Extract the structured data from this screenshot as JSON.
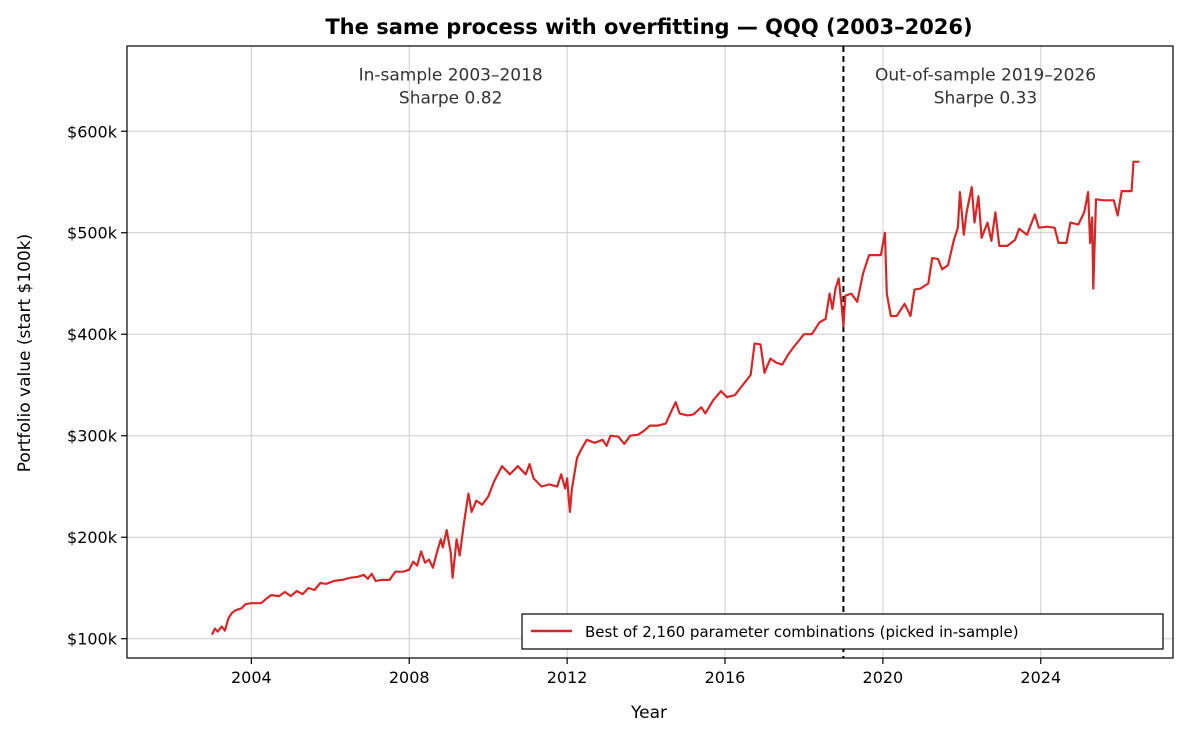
{
  "chart_data": {
    "type": "line",
    "title": "The same process with overfitting — QQQ (2003–2026)",
    "xlabel": "Year",
    "ylabel": "Portfolio value (start $100k)",
    "xlim": [
      2000.85,
      2027.35
    ],
    "ylim": [
      81000,
      684000
    ],
    "x_ticks": [
      2004,
      2008,
      2012,
      2016,
      2020,
      2024
    ],
    "x_tick_labels": [
      "2004",
      "2008",
      "2012",
      "2016",
      "2020",
      "2024"
    ],
    "y_ticks": [
      100000,
      200000,
      300000,
      400000,
      500000,
      600000
    ],
    "y_tick_labels": [
      "$100k",
      "$200k",
      "$300k",
      "$400k",
      "$500k",
      "$600k"
    ],
    "grid": true,
    "legend_position": "lower right",
    "split_line": {
      "x": 2019.0,
      "style": "dashed",
      "color": "#000000"
    },
    "annotations": [
      {
        "line1": "In-sample 2003–2018",
        "line2": "Sharpe 0.82",
        "x": 2009.05,
        "y": 650000
      },
      {
        "line1": "Out-of-sample 2019–2026",
        "line2": "Sharpe 0.33",
        "x": 2022.6,
        "y": 650000
      }
    ],
    "series": [
      {
        "name": "Best of 2,160 parameter combinations (picked in-sample)",
        "color": "#d62728",
        "points": [
          [
            2003.0,
            104000
          ],
          [
            2003.08,
            110000
          ],
          [
            2003.15,
            107000
          ],
          [
            2003.25,
            112000
          ],
          [
            2003.33,
            108000
          ],
          [
            2003.42,
            120000
          ],
          [
            2003.5,
            125000
          ],
          [
            2003.6,
            128000
          ],
          [
            2003.75,
            130000
          ],
          [
            2003.85,
            134000
          ],
          [
            2004.0,
            135000
          ],
          [
            2004.25,
            135000
          ],
          [
            2004.4,
            140000
          ],
          [
            2004.5,
            143000
          ],
          [
            2004.7,
            142000
          ],
          [
            2004.85,
            146000
          ],
          [
            2005.0,
            142000
          ],
          [
            2005.15,
            147000
          ],
          [
            2005.3,
            144000
          ],
          [
            2005.45,
            150000
          ],
          [
            2005.6,
            148000
          ],
          [
            2005.75,
            155000
          ],
          [
            2005.9,
            154000
          ],
          [
            2006.1,
            157000
          ],
          [
            2006.3,
            158000
          ],
          [
            2006.5,
            160000
          ],
          [
            2006.7,
            161000
          ],
          [
            2006.85,
            163000
          ],
          [
            2006.95,
            159000
          ],
          [
            2007.05,
            164000
          ],
          [
            2007.15,
            157000
          ],
          [
            2007.3,
            158000
          ],
          [
            2007.5,
            158000
          ],
          [
            2007.65,
            166000
          ],
          [
            2007.85,
            166000
          ],
          [
            2008.0,
            168000
          ],
          [
            2008.1,
            176000
          ],
          [
            2008.2,
            172000
          ],
          [
            2008.3,
            186000
          ],
          [
            2008.4,
            175000
          ],
          [
            2008.5,
            178000
          ],
          [
            2008.6,
            170000
          ],
          [
            2008.7,
            185000
          ],
          [
            2008.8,
            198000
          ],
          [
            2008.85,
            190000
          ],
          [
            2008.95,
            207000
          ],
          [
            2009.05,
            185000
          ],
          [
            2009.1,
            160000
          ],
          [
            2009.2,
            198000
          ],
          [
            2009.28,
            182000
          ],
          [
            2009.38,
            212000
          ],
          [
            2009.5,
            243000
          ],
          [
            2009.58,
            225000
          ],
          [
            2009.7,
            236000
          ],
          [
            2009.85,
            232000
          ],
          [
            2010.0,
            240000
          ],
          [
            2010.15,
            255000
          ],
          [
            2010.35,
            270000
          ],
          [
            2010.55,
            262000
          ],
          [
            2010.75,
            270000
          ],
          [
            2010.95,
            262000
          ],
          [
            2011.05,
            272000
          ],
          [
            2011.15,
            258000
          ],
          [
            2011.35,
            250000
          ],
          [
            2011.55,
            252000
          ],
          [
            2011.75,
            250000
          ],
          [
            2011.85,
            262000
          ],
          [
            2011.95,
            248000
          ],
          [
            2012.0,
            258000
          ],
          [
            2012.07,
            225000
          ],
          [
            2012.12,
            247000
          ],
          [
            2012.25,
            278000
          ],
          [
            2012.35,
            286000
          ],
          [
            2012.5,
            296000
          ],
          [
            2012.7,
            293000
          ],
          [
            2012.9,
            296000
          ],
          [
            2013.0,
            290000
          ],
          [
            2013.1,
            300000
          ],
          [
            2013.3,
            299000
          ],
          [
            2013.45,
            292000
          ],
          [
            2013.6,
            300000
          ],
          [
            2013.8,
            301000
          ],
          [
            2013.95,
            305000
          ],
          [
            2014.1,
            310000
          ],
          [
            2014.3,
            310000
          ],
          [
            2014.5,
            312000
          ],
          [
            2014.65,
            325000
          ],
          [
            2014.75,
            333000
          ],
          [
            2014.85,
            322000
          ],
          [
            2015.05,
            320000
          ],
          [
            2015.2,
            321000
          ],
          [
            2015.4,
            328000
          ],
          [
            2015.5,
            322000
          ],
          [
            2015.7,
            335000
          ],
          [
            2015.9,
            344000
          ],
          [
            2016.05,
            338000
          ],
          [
            2016.25,
            340000
          ],
          [
            2016.45,
            350000
          ],
          [
            2016.65,
            360000
          ],
          [
            2016.75,
            391000
          ],
          [
            2016.9,
            390000
          ],
          [
            2017.0,
            362000
          ],
          [
            2017.15,
            376000
          ],
          [
            2017.3,
            372000
          ],
          [
            2017.45,
            370000
          ],
          [
            2017.6,
            380000
          ],
          [
            2017.75,
            388000
          ],
          [
            2017.9,
            395000
          ],
          [
            2018.0,
            400000
          ],
          [
            2018.2,
            400000
          ],
          [
            2018.4,
            412000
          ],
          [
            2018.55,
            415000
          ],
          [
            2018.65,
            440000
          ],
          [
            2018.72,
            425000
          ],
          [
            2018.8,
            445000
          ],
          [
            2018.88,
            455000
          ],
          [
            2018.95,
            430000
          ],
          [
            2019.0,
            408000
          ],
          [
            2019.05,
            438000
          ],
          [
            2019.2,
            440000
          ],
          [
            2019.35,
            432000
          ],
          [
            2019.5,
            460000
          ],
          [
            2019.65,
            478000
          ],
          [
            2019.8,
            478000
          ],
          [
            2019.95,
            478000
          ],
          [
            2020.05,
            500000
          ],
          [
            2020.1,
            440000
          ],
          [
            2020.2,
            418000
          ],
          [
            2020.35,
            418000
          ],
          [
            2020.55,
            430000
          ],
          [
            2020.7,
            418000
          ],
          [
            2020.8,
            444000
          ],
          [
            2020.95,
            445000
          ],
          [
            2021.15,
            450000
          ],
          [
            2021.25,
            475000
          ],
          [
            2021.4,
            474000
          ],
          [
            2021.5,
            464000
          ],
          [
            2021.65,
            468000
          ],
          [
            2021.8,
            493000
          ],
          [
            2021.9,
            505000
          ],
          [
            2021.95,
            540000
          ],
          [
            2022.05,
            498000
          ],
          [
            2022.12,
            520000
          ],
          [
            2022.25,
            545000
          ],
          [
            2022.32,
            510000
          ],
          [
            2022.42,
            536000
          ],
          [
            2022.5,
            495000
          ],
          [
            2022.65,
            510000
          ],
          [
            2022.75,
            492000
          ],
          [
            2022.85,
            520000
          ],
          [
            2022.95,
            487000
          ],
          [
            2023.15,
            487000
          ],
          [
            2023.35,
            493000
          ],
          [
            2023.45,
            504000
          ],
          [
            2023.65,
            498000
          ],
          [
            2023.85,
            518000
          ],
          [
            2023.95,
            505000
          ],
          [
            2024.15,
            506000
          ],
          [
            2024.35,
            505000
          ],
          [
            2024.45,
            490000
          ],
          [
            2024.65,
            490000
          ],
          [
            2024.75,
            510000
          ],
          [
            2024.95,
            508000
          ],
          [
            2025.1,
            520000
          ],
          [
            2025.2,
            540000
          ],
          [
            2025.25,
            490000
          ],
          [
            2025.3,
            515000
          ],
          [
            2025.33,
            445000
          ],
          [
            2025.4,
            533000
          ],
          [
            2025.6,
            532000
          ],
          [
            2025.85,
            532000
          ],
          [
            2025.95,
            517000
          ],
          [
            2026.05,
            541000
          ],
          [
            2026.3,
            541000
          ],
          [
            2026.35,
            570000
          ],
          [
            2026.5,
            570000
          ]
        ]
      }
    ]
  }
}
